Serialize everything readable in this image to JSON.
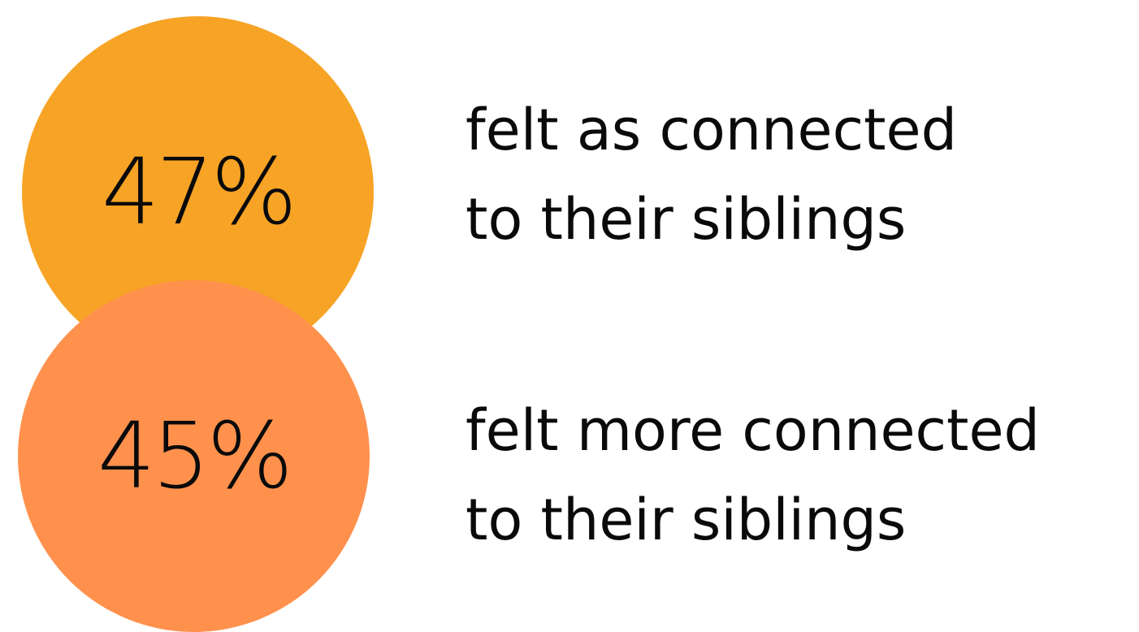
{
  "colors": {
    "circle_1": "#F7A325",
    "circle_2": "#FF914D",
    "text": "#0A0A0A",
    "background": "#FFFFFF"
  },
  "stats": [
    {
      "value": "47%",
      "caption_line1": "felt as connected",
      "caption_line2": "to their siblings"
    },
    {
      "value": "45%",
      "caption_line1": "felt more connected",
      "caption_line2": "to their siblings"
    }
  ]
}
